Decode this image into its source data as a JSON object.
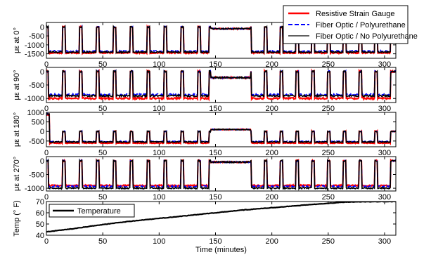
{
  "chart_data": [
    {
      "type": "line",
      "ylabel": "με at 0°",
      "xlim": [
        0,
        310
      ],
      "ylim": [
        -1750,
        250
      ],
      "xticks": [
        "0",
        "50",
        "100",
        "150",
        "200",
        "250",
        "300"
      ],
      "yticks": [
        "0",
        "-500",
        "-1000",
        "-1500"
      ],
      "plateau": -1450,
      "mid_level": -100,
      "noise": 70,
      "series": [
        {
          "name": "Resistive Strain Gauge",
          "color": "#ff0000",
          "dash": "solid",
          "scale": 1.0
        },
        {
          "name": "Fiber Optic / Polyurethane",
          "color": "#0000ff",
          "dash": "dashed",
          "scale": 0.93
        },
        {
          "name": "Fiber Optic / No Polyurethane",
          "color": "#000000",
          "dash": "solid",
          "scale": 0.97
        }
      ]
    },
    {
      "type": "line",
      "ylabel": "με at 90°",
      "xlim": [
        0,
        310
      ],
      "ylim": [
        -1150,
        150
      ],
      "xticks": [
        "0",
        "50",
        "100",
        "150",
        "200",
        "250",
        "300"
      ],
      "yticks": [
        "0",
        "-500",
        "-1000"
      ],
      "plateau": -950,
      "mid_level": -230,
      "noise": 60,
      "series": [
        {
          "name": "Resistive Strain Gauge",
          "color": "#ff0000",
          "dash": "solid",
          "scale": 1.05
        },
        {
          "name": "Fiber Optic / Polyurethane",
          "color": "#0000ff",
          "dash": "dashed",
          "scale": 0.9
        },
        {
          "name": "Fiber Optic / No Polyurethane",
          "color": "#000000",
          "dash": "solid",
          "scale": 0.95
        }
      ]
    },
    {
      "type": "line",
      "ylabel": "με at 180°",
      "xlim": [
        0,
        310
      ],
      "ylim": [
        -800,
        1000
      ],
      "xticks": [
        "0",
        "50",
        "100",
        "150",
        "200",
        "250",
        "300"
      ],
      "yticks": [
        "1000",
        "500",
        "0",
        "-500"
      ],
      "plateau": -550,
      "mid_level": 100,
      "noise": 50,
      "series": [
        {
          "name": "Resistive Strain Gauge",
          "color": "#ff0000",
          "dash": "solid",
          "scale": 1.1
        },
        {
          "name": "Fiber Optic / Polyurethane",
          "color": "#0000ff",
          "dash": "dashed",
          "scale": 0.95
        },
        {
          "name": "Fiber Optic / No Polyurethane",
          "color": "#000000",
          "dash": "solid",
          "scale": 1.0
        }
      ]
    },
    {
      "type": "line",
      "ylabel": "με at 270°",
      "xlim": [
        0,
        310
      ],
      "ylim": [
        -1100,
        150
      ],
      "xticks": [
        "0",
        "50",
        "100",
        "150",
        "200",
        "250",
        "300"
      ],
      "yticks": [
        "0",
        "-500",
        "-1000"
      ],
      "plateau": -950,
      "mid_level": -50,
      "noise": 50,
      "series": [
        {
          "name": "Resistive Strain Gauge",
          "color": "#ff0000",
          "dash": "solid",
          "scale": 0.95
        },
        {
          "name": "Fiber Optic / Polyurethane",
          "color": "#0000ff",
          "dash": "dashed",
          "scale": 0.98
        },
        {
          "name": "Fiber Optic / No Polyurethane",
          "color": "#000000",
          "dash": "solid",
          "scale": 1.05
        }
      ]
    },
    {
      "type": "line",
      "ylabel": "Temp (° F)",
      "xlabel": "Time (minutes)",
      "xlim": [
        0,
        310
      ],
      "ylim": [
        40,
        70
      ],
      "xticks": [
        "0",
        "50",
        "100",
        "150",
        "200",
        "250",
        "300"
      ],
      "yticks": [
        "70",
        "60",
        "50",
        "40"
      ],
      "series": [
        {
          "name": "Temperature",
          "color": "#000000",
          "x": [
            0,
            25,
            50,
            75,
            100,
            125,
            150,
            175,
            200,
            225,
            250,
            265,
            280,
            300,
            310
          ],
          "y": [
            43,
            46,
            49.5,
            52.5,
            55,
            57.5,
            60,
            62.5,
            64.5,
            66.5,
            68.5,
            69.5,
            69.8,
            70,
            70
          ]
        }
      ]
    }
  ],
  "cycles": [
    [
      2,
      14
    ],
    [
      17,
      29
    ],
    [
      32,
      44
    ],
    [
      47,
      59
    ],
    [
      62,
      74
    ],
    [
      77,
      89
    ],
    [
      92,
      104
    ],
    [
      107,
      119
    ],
    [
      122,
      134
    ],
    [
      137,
      144
    ],
    [
      182,
      193
    ],
    [
      196,
      207
    ],
    [
      210,
      221
    ],
    [
      224,
      235
    ],
    [
      238,
      249
    ],
    [
      252,
      263
    ],
    [
      266,
      277
    ],
    [
      280,
      291
    ],
    [
      294,
      305
    ]
  ],
  "mid_window": [
    146,
    181
  ],
  "legend": {
    "entries": [
      {
        "label": "Resistive Strain Gauge",
        "color": "#ff0000",
        "dash": "solid"
      },
      {
        "label": "Fiber Optic / Polyurethane",
        "color": "#0000ff",
        "dash": "dashed"
      },
      {
        "label": "Fiber Optic / No Polyurethane",
        "color": "#000000",
        "dash": "solid"
      }
    ]
  },
  "temp_legend": {
    "label": "Temperature"
  }
}
